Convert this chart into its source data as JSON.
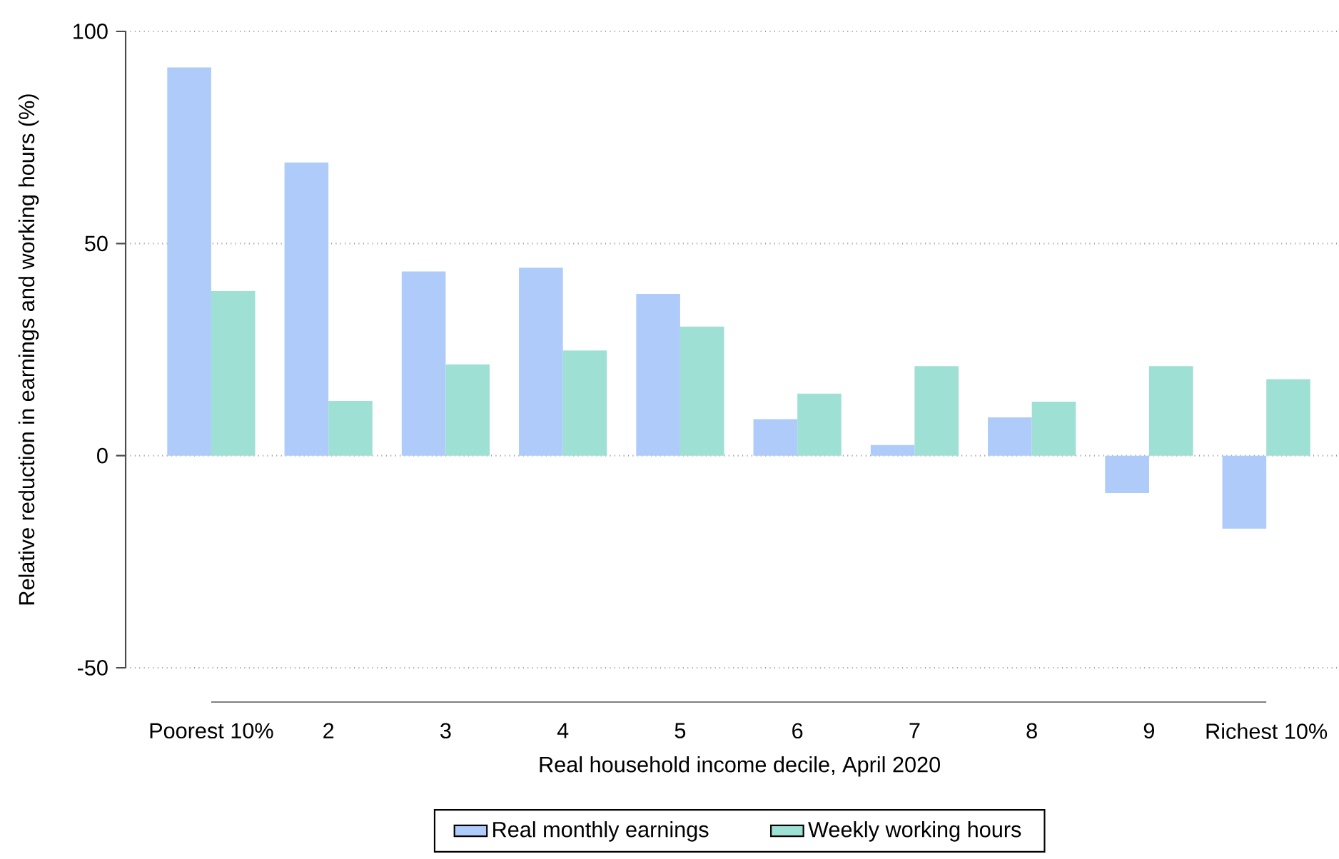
{
  "chart_data": {
    "type": "bar",
    "categories": [
      "Poorest 10%",
      "2",
      "3",
      "4",
      "5",
      "6",
      "7",
      "8",
      "9",
      "Richest 10%"
    ],
    "series": [
      {
        "name": "Real monthly earnings",
        "color": "#aecbfa",
        "values": [
          91.5,
          69.1,
          43.4,
          44.3,
          38.1,
          8.6,
          2.5,
          9.0,
          -8.8,
          -17.2
        ]
      },
      {
        "name": "Weekly working hours",
        "color": "#9ee0d4",
        "values": [
          38.8,
          12.9,
          21.5,
          24.8,
          30.4,
          14.6,
          21.1,
          12.7,
          21.1,
          18.0
        ]
      }
    ],
    "xlabel": "Real household income decile, April 2020",
    "ylabel": "Relative reduction in earnings and working hours (%)",
    "ylim": [
      -50,
      100
    ],
    "yticks": [
      -50,
      0,
      50,
      100
    ],
    "grid": "y",
    "legend": "bottom"
  }
}
